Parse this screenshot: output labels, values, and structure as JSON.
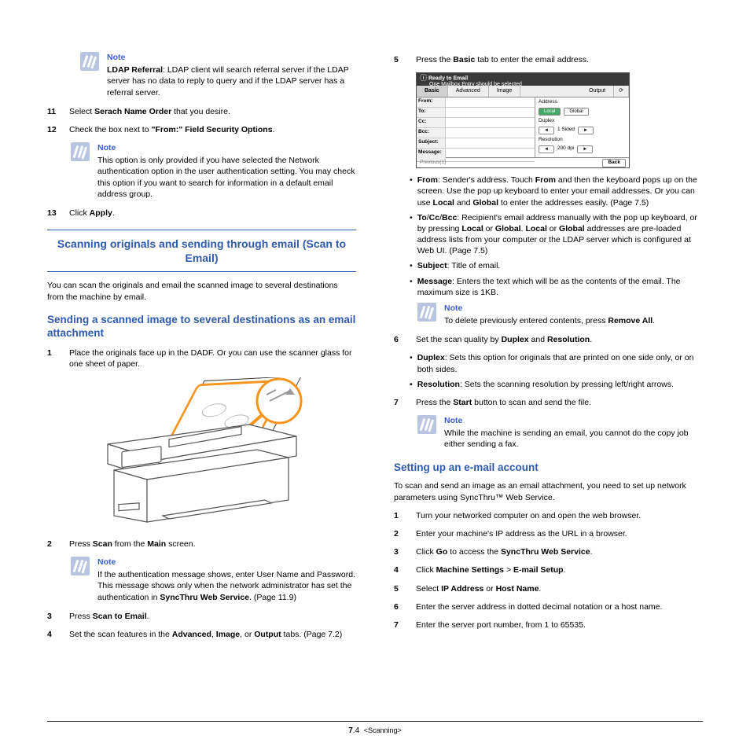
{
  "left": {
    "note1": {
      "label": "Note",
      "text_parts": [
        "LDAP Referral",
        ": LDAP client will search referral server if the LDAP server has no data to reply to query and if the LDAP server has a referral server."
      ]
    },
    "step11": {
      "num": "11",
      "parts": [
        "Select ",
        "Serach Name Order",
        " that you desire."
      ]
    },
    "step12": {
      "num": "12",
      "parts": [
        "Check the box next to  ",
        "\"From:\" Field Security Options",
        "."
      ]
    },
    "note2": {
      "label": "Note",
      "text": "This option is only provided if you have selected the Network authentication option in the user authentication setting. You may check this option if you want to search for information in a default email address group."
    },
    "step13": {
      "num": "13",
      "parts": [
        "Click ",
        "Apply",
        "."
      ]
    },
    "heading1": "Scanning originals and sending through email (Scan to Email)",
    "para1": "You can scan the originals and email the scanned image to several destinations from the machine by email.",
    "subheading1": "Sending a scanned image to several destinations as an email attachment",
    "step1": {
      "num": "1",
      "text": "Place the originals face up in the DADF. Or you can use the scanner glass for one sheet of paper."
    },
    "step2": {
      "num": "2",
      "parts": [
        "Press ",
        "Scan",
        " from the ",
        "Main",
        " screen."
      ]
    },
    "note3": {
      "label": "Note",
      "parts": [
        " If the authentication message shows, enter User Name and Password. This message shows only when the network administrator has set the authentication in ",
        "SyncThru Web Service",
        ". (Page 11.9)"
      ]
    },
    "step3": {
      "num": "3",
      "parts": [
        "Press ",
        "Scan to Email",
        "."
      ]
    },
    "step4": {
      "num": "4",
      "parts": [
        "Set the scan features in the ",
        "Advanced",
        ", ",
        "Image",
        ", or ",
        "Output",
        " tabs. (Page 7.2)"
      ]
    }
  },
  "right": {
    "step5": {
      "num": "5",
      "parts": [
        "Press the ",
        "Basic",
        " tab to enter the email address."
      ]
    },
    "ui": {
      "title": "Ready to Email",
      "subtitle": "One Mailbox Entry should be selected",
      "tabs": [
        "Basic",
        "Advanced",
        "Image",
        "Output"
      ],
      "status_icon": "⟳",
      "rows": [
        "From:",
        "To:",
        "Cc:",
        "Bcc:",
        "Subject:",
        "Message:"
      ],
      "addr_label": "Address",
      "local_btn": "Local",
      "global_btn": "Global",
      "duplex_label": "Duplex",
      "duplex_val": "1 Sided",
      "resolution_label": "Resolution",
      "res_val": "200 dpi",
      "prev": "Previous(1)",
      "back": "Back"
    },
    "bullets1": [
      {
        "parts": [
          "",
          "From",
          ": Sender's address. Touch ",
          "From",
          " and then the keyboard pops up on the screen. Use the pop up keyboard to enter your email addresses. Or you can use ",
          "Local",
          " and ",
          "Global",
          " to enter the addresses easily. (Page 7.5)"
        ]
      },
      {
        "parts": [
          "",
          "To",
          "/",
          "Cc",
          "/",
          "Bcc",
          ": Recipient's email address manually with the pop up keyboard, or by pressing ",
          "Local",
          " or ",
          "Global",
          ". ",
          "Local",
          " or ",
          "Global",
          " addresses are pre-loaded address lists from your computer or the LDAP server which is configured at Web UI. (Page 7.5)"
        ]
      },
      {
        "parts": [
          "",
          "Subject",
          ": Title of email."
        ]
      },
      {
        "parts": [
          "",
          "Message",
          ": Enters the text which will be as the contents of the email. The maximum size is 1KB."
        ]
      }
    ],
    "note4": {
      "label": "Note",
      "parts": [
        "To delete previously entered contents, press ",
        "Remove All",
        "."
      ]
    },
    "step6": {
      "num": "6",
      "parts": [
        "Set the scan quality by ",
        "Duplex",
        " and ",
        "Resolution",
        "."
      ]
    },
    "bullets2": [
      {
        "parts": [
          "",
          "Duplex",
          ": Sets this option for originals that are printed on one side only, or on both sides."
        ]
      },
      {
        "parts": [
          "",
          "Resolution",
          ": Sets the scanning resolution by pressing left/right arrows."
        ]
      }
    ],
    "step7": {
      "num": "7",
      "parts": [
        "Press the ",
        "Start",
        " button to scan and send the file."
      ]
    },
    "note5": {
      "label": "Note",
      "text": "While the machine is sending an email, you cannot do the copy job either sending a fax."
    },
    "subheading2": "Setting up an e-mail account",
    "para2": "To scan and send an image as an email attachment, you need to set up network parameters using SyncThru™ Web Service.",
    "steps_setup": [
      {
        "num": "1",
        "parts": [
          "Turn your networked computer on and open the web browser."
        ]
      },
      {
        "num": "2",
        "parts": [
          "Enter your machine's IP address as the URL in a browser."
        ]
      },
      {
        "num": "3",
        "parts": [
          "Click ",
          "Go",
          " to access the ",
          "SyncThru Web Service",
          "."
        ]
      },
      {
        "num": "4",
        "parts": [
          "Click ",
          "Machine Settings",
          " > ",
          "E-mail Setup",
          "."
        ]
      },
      {
        "num": "5",
        "parts": [
          "Select ",
          "IP Address",
          " or ",
          "Host Name",
          "."
        ]
      },
      {
        "num": "6",
        "parts": [
          "Enter the server address in dotted decimal notation or a host name."
        ]
      },
      {
        "num": "7",
        "parts": [
          "Enter the server port number, from 1 to 65535."
        ]
      }
    ]
  },
  "footer": {
    "chapter": "7",
    "page": ".4",
    "section": "<Scanning>"
  },
  "colors": {
    "heading": "#2e5aad",
    "note_icon": "#b8c4e0",
    "accent_orange": "#f7941d"
  }
}
